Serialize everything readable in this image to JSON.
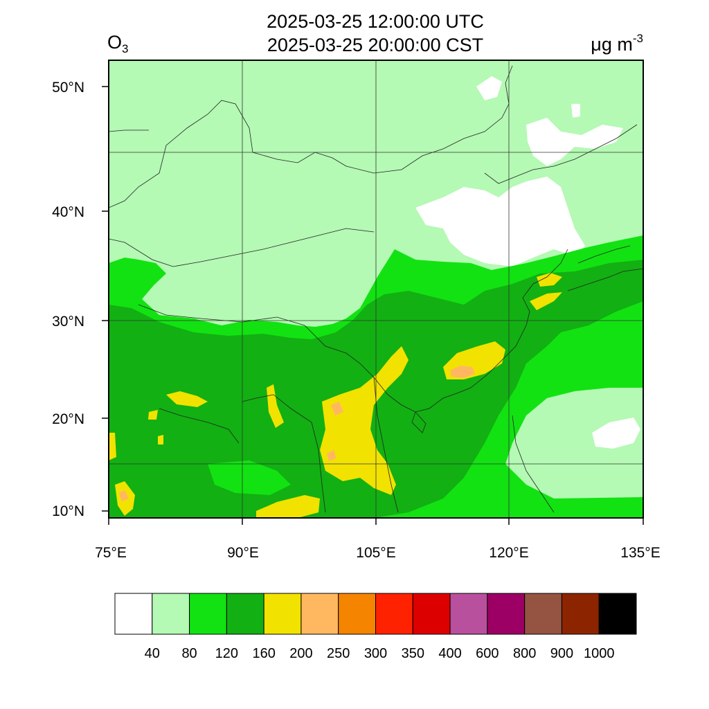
{
  "header": {
    "title_utc": "2025-03-25 12:00:00 UTC",
    "title_cst": "2025-03-25 20:00:00 CST",
    "variable": "O",
    "variable_sub": "3",
    "unit": "μg m",
    "unit_sup": "-3"
  },
  "map": {
    "region": "East Asia",
    "lon_range": [
      75,
      135
    ],
    "lat_range": [
      9,
      52
    ],
    "lon_ticks": [
      "75°E",
      "90°E",
      "105°E",
      "120°E",
      "135°E"
    ],
    "lat_ticks": [
      "10°N",
      "20°N",
      "30°N",
      "40°N",
      "50°N"
    ],
    "gridlines": true
  },
  "legend": {
    "colors": [
      "#ffffff",
      "#b4f9b4",
      "#12e212",
      "#12b012",
      "#f2e200",
      "#ffb860",
      "#f58400",
      "#ff2200",
      "#dc0000",
      "#b9509e",
      "#9c0064",
      "#955342",
      "#8c2400",
      "#000000"
    ],
    "labels": [
      "40",
      "80",
      "120",
      "160",
      "200",
      "250",
      "300",
      "350",
      "400",
      "600",
      "800",
      "900",
      "1000"
    ]
  }
}
